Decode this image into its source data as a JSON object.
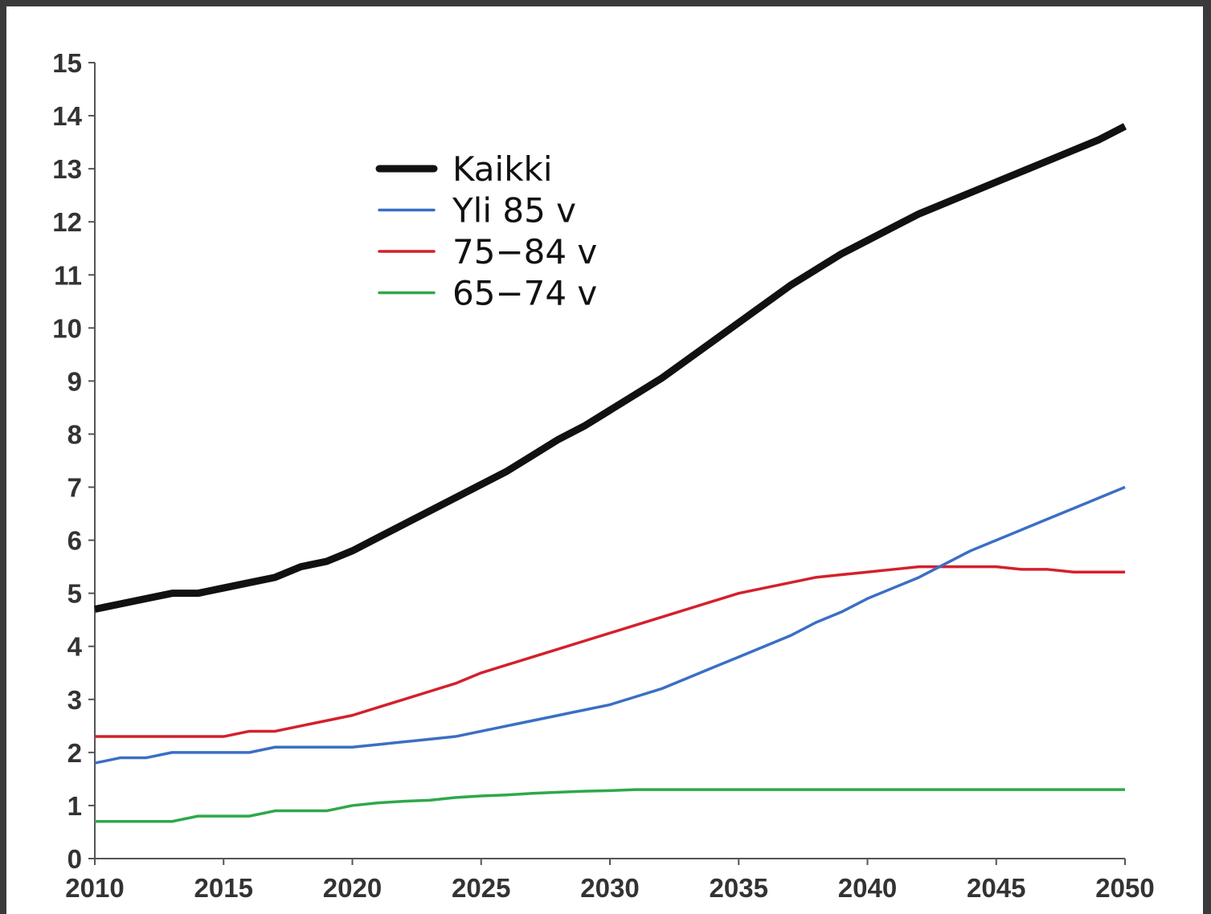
{
  "chart_data": {
    "type": "line",
    "x": [
      2010,
      2011,
      2012,
      2013,
      2014,
      2015,
      2016,
      2017,
      2018,
      2019,
      2020,
      2021,
      2022,
      2023,
      2024,
      2025,
      2026,
      2027,
      2028,
      2029,
      2030,
      2031,
      2032,
      2033,
      2034,
      2035,
      2036,
      2037,
      2038,
      2039,
      2040,
      2041,
      2042,
      2043,
      2044,
      2045,
      2046,
      2047,
      2048,
      2049,
      2050
    ],
    "series": [
      {
        "name": "Kaikki",
        "color": "#111111",
        "values": [
          4.7,
          4.8,
          4.9,
          5.0,
          5.0,
          5.1,
          5.2,
          5.3,
          5.5,
          5.6,
          5.8,
          6.05,
          6.3,
          6.55,
          6.8,
          7.05,
          7.3,
          7.6,
          7.9,
          8.15,
          8.45,
          8.75,
          9.05,
          9.4,
          9.75,
          10.1,
          10.45,
          10.8,
          11.1,
          11.4,
          11.65,
          11.9,
          12.15,
          12.35,
          12.55,
          12.75,
          12.95,
          13.15,
          13.35,
          13.55,
          13.8
        ]
      },
      {
        "name": "Yli 85 v",
        "color": "#3a6fc4",
        "values": [
          1.8,
          1.9,
          1.9,
          2.0,
          2.0,
          2.0,
          2.0,
          2.1,
          2.1,
          2.1,
          2.1,
          2.15,
          2.2,
          2.25,
          2.3,
          2.4,
          2.5,
          2.6,
          2.7,
          2.8,
          2.9,
          3.05,
          3.2,
          3.4,
          3.6,
          3.8,
          4.0,
          4.2,
          4.45,
          4.65,
          4.9,
          5.1,
          5.3,
          5.55,
          5.8,
          6.0,
          6.2,
          6.4,
          6.6,
          6.8,
          7.0
        ]
      },
      {
        "name": "75−84 v",
        "color": "#d4202c",
        "values": [
          2.3,
          2.3,
          2.3,
          2.3,
          2.3,
          2.3,
          2.4,
          2.4,
          2.5,
          2.6,
          2.7,
          2.85,
          3.0,
          3.15,
          3.3,
          3.5,
          3.65,
          3.8,
          3.95,
          4.1,
          4.25,
          4.4,
          4.55,
          4.7,
          4.85,
          5.0,
          5.1,
          5.2,
          5.3,
          5.35,
          5.4,
          5.45,
          5.5,
          5.5,
          5.5,
          5.5,
          5.45,
          5.45,
          5.4,
          5.4,
          5.4
        ]
      },
      {
        "name": "65−74 v",
        "color": "#2ea84a",
        "values": [
          0.7,
          0.7,
          0.7,
          0.7,
          0.8,
          0.8,
          0.8,
          0.9,
          0.9,
          0.9,
          1.0,
          1.05,
          1.08,
          1.1,
          1.15,
          1.18,
          1.2,
          1.23,
          1.25,
          1.27,
          1.28,
          1.3,
          1.3,
          1.3,
          1.3,
          1.3,
          1.3,
          1.3,
          1.3,
          1.3,
          1.3,
          1.3,
          1.3,
          1.3,
          1.3,
          1.3,
          1.3,
          1.3,
          1.3,
          1.3,
          1.3
        ]
      }
    ],
    "xlim": [
      2010,
      2050
    ],
    "xticks": [
      2010,
      2015,
      2020,
      2025,
      2030,
      2035,
      2040,
      2045,
      2050
    ],
    "ylim": [
      0,
      15
    ],
    "yticks": [
      0,
      1,
      2,
      3,
      4,
      5,
      6,
      7,
      8,
      9,
      10,
      11,
      12,
      13,
      14,
      15
    ],
    "grid": false
  }
}
